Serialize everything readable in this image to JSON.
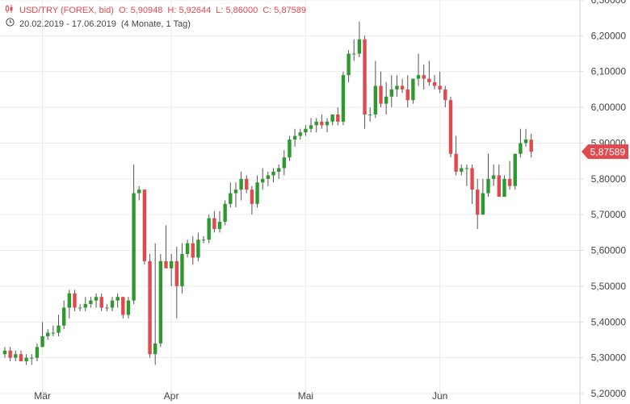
{
  "header": {
    "symbol": "USD/TRY (FOREX, bid)",
    "open": "O: 5,90948",
    "high": "H: 5,92644",
    "low": "L: 5,86000",
    "close": "C: 5,87589",
    "range": "20.02.2019 - 17.06.2019",
    "period": "(4 Monate, 1 Tag)",
    "chart_icon": "candlestick-icon",
    "clock_icon": "clock-icon"
  },
  "colors": {
    "up": "#2e9a2e",
    "down": "#e0494d",
    "grid": "#ececec",
    "axis": "#d4d4d4",
    "text": "#444444",
    "last_tag": "#e0494d"
  },
  "chart_data": {
    "type": "candlestick",
    "title": "USD/TRY (FOREX, bid)",
    "ylim": [
      5.2,
      6.3
    ],
    "y_ticks": [
      "6,30000",
      "6,20000",
      "6,10000",
      "6,00000",
      "5,90000",
      "5,80000",
      "5,70000",
      "5,60000",
      "5,50000",
      "5,40000",
      "5,30000",
      "5,20000"
    ],
    "x_labels": [
      {
        "label": "Mär",
        "index": 7
      },
      {
        "label": "Apr",
        "index": 31
      },
      {
        "label": "Mai",
        "index": 56
      },
      {
        "label": "Jun",
        "index": 81
      }
    ],
    "last_value": "5,87589",
    "last_close": 5.87589,
    "ohlc": [
      [
        5.31,
        5.33,
        5.3,
        5.32
      ],
      [
        5.32,
        5.33,
        5.29,
        5.3
      ],
      [
        5.3,
        5.32,
        5.29,
        5.31
      ],
      [
        5.31,
        5.32,
        5.29,
        5.29
      ],
      [
        5.29,
        5.31,
        5.28,
        5.3
      ],
      [
        5.3,
        5.31,
        5.28,
        5.3
      ],
      [
        5.3,
        5.34,
        5.29,
        5.33
      ],
      [
        5.33,
        5.4,
        5.33,
        5.36
      ],
      [
        5.36,
        5.38,
        5.35,
        5.37
      ],
      [
        5.37,
        5.39,
        5.36,
        5.37
      ],
      [
        5.37,
        5.42,
        5.36,
        5.39
      ],
      [
        5.39,
        5.46,
        5.38,
        5.44
      ],
      [
        5.44,
        5.49,
        5.41,
        5.48
      ],
      [
        5.48,
        5.49,
        5.43,
        5.44
      ],
      [
        5.44,
        5.45,
        5.43,
        5.44
      ],
      [
        5.44,
        5.47,
        5.43,
        5.45
      ],
      [
        5.45,
        5.47,
        5.44,
        5.46
      ],
      [
        5.46,
        5.48,
        5.44,
        5.47
      ],
      [
        5.47,
        5.48,
        5.43,
        5.44
      ],
      [
        5.44,
        5.45,
        5.43,
        5.44
      ],
      [
        5.44,
        5.47,
        5.43,
        5.46
      ],
      [
        5.46,
        5.48,
        5.44,
        5.47
      ],
      [
        5.47,
        5.47,
        5.41,
        5.42
      ],
      [
        5.42,
        5.47,
        5.41,
        5.46
      ],
      [
        5.46,
        5.84,
        5.45,
        5.76
      ],
      [
        5.76,
        5.78,
        5.74,
        5.77
      ],
      [
        5.77,
        5.77,
        5.56,
        5.57
      ],
      [
        5.57,
        5.59,
        5.3,
        5.31
      ],
      [
        5.31,
        5.62,
        5.28,
        5.34
      ],
      [
        5.34,
        5.59,
        5.33,
        5.57
      ],
      [
        5.57,
        5.67,
        5.55,
        5.55
      ],
      [
        5.55,
        5.59,
        5.5,
        5.57
      ],
      [
        5.57,
        5.61,
        5.41,
        5.5
      ],
      [
        5.5,
        5.62,
        5.48,
        5.59
      ],
      [
        5.59,
        5.63,
        5.58,
        5.62
      ],
      [
        5.62,
        5.64,
        5.56,
        5.58
      ],
      [
        5.58,
        5.65,
        5.57,
        5.63
      ],
      [
        5.63,
        5.64,
        5.62,
        5.63
      ],
      [
        5.63,
        5.7,
        5.62,
        5.69
      ],
      [
        5.69,
        5.71,
        5.65,
        5.66
      ],
      [
        5.66,
        5.71,
        5.65,
        5.68
      ],
      [
        5.68,
        5.74,
        5.67,
        5.73
      ],
      [
        5.73,
        5.79,
        5.72,
        5.76
      ],
      [
        5.76,
        5.79,
        5.72,
        5.77
      ],
      [
        5.77,
        5.82,
        5.74,
        5.8
      ],
      [
        5.8,
        5.81,
        5.76,
        5.77
      ],
      [
        5.77,
        5.78,
        5.7,
        5.73
      ],
      [
        5.73,
        5.81,
        5.72,
        5.79
      ],
      [
        5.79,
        5.83,
        5.77,
        5.8
      ],
      [
        5.8,
        5.82,
        5.78,
        5.81
      ],
      [
        5.81,
        5.83,
        5.79,
        5.82
      ],
      [
        5.82,
        5.84,
        5.8,
        5.83
      ],
      [
        5.83,
        5.88,
        5.81,
        5.86
      ],
      [
        5.86,
        5.92,
        5.85,
        5.91
      ],
      [
        5.91,
        5.94,
        5.89,
        5.92
      ],
      [
        5.92,
        5.94,
        5.91,
        5.93
      ],
      [
        5.93,
        5.95,
        5.92,
        5.94
      ],
      [
        5.94,
        5.97,
        5.93,
        5.95
      ],
      [
        5.95,
        5.97,
        5.93,
        5.96
      ],
      [
        5.96,
        5.98,
        5.94,
        5.95
      ],
      [
        5.95,
        5.97,
        5.93,
        5.96
      ],
      [
        5.96,
        5.98,
        5.95,
        5.98
      ],
      [
        5.98,
        6.0,
        5.95,
        5.96
      ],
      [
        5.96,
        6.1,
        5.95,
        6.09
      ],
      [
        6.09,
        6.16,
        6.07,
        6.15
      ],
      [
        6.15,
        6.19,
        6.13,
        6.15
      ],
      [
        6.15,
        6.24,
        6.14,
        6.19
      ],
      [
        6.19,
        6.2,
        5.94,
        5.98
      ],
      [
        5.98,
        6.0,
        5.96,
        5.98
      ],
      [
        5.98,
        6.13,
        5.97,
        6.06
      ],
      [
        6.06,
        6.1,
        6.0,
        6.01
      ],
      [
        6.01,
        6.07,
        5.98,
        6.03
      ],
      [
        6.03,
        6.09,
        6.0,
        6.05
      ],
      [
        6.05,
        6.09,
        6.03,
        6.06
      ],
      [
        6.06,
        6.08,
        6.04,
        6.05
      ],
      [
        6.05,
        6.09,
        6.0,
        6.02
      ],
      [
        6.02,
        6.08,
        6.01,
        6.08
      ],
      [
        6.08,
        6.15,
        6.06,
        6.09
      ],
      [
        6.09,
        6.12,
        6.05,
        6.08
      ],
      [
        6.08,
        6.13,
        6.06,
        6.07
      ],
      [
        6.07,
        6.09,
        6.05,
        6.06
      ],
      [
        6.06,
        6.1,
        6.04,
        6.05
      ],
      [
        6.05,
        6.06,
        6.0,
        6.02
      ],
      [
        6.02,
        6.03,
        5.86,
        5.87
      ],
      [
        5.87,
        5.92,
        5.81,
        5.82
      ],
      [
        5.82,
        5.84,
        5.81,
        5.83
      ],
      [
        5.83,
        5.84,
        5.78,
        5.83
      ],
      [
        5.83,
        5.84,
        5.73,
        5.77
      ],
      [
        5.77,
        5.8,
        5.66,
        5.7
      ],
      [
        5.7,
        5.8,
        5.7,
        5.76
      ],
      [
        5.76,
        5.87,
        5.75,
        5.8
      ],
      [
        5.8,
        5.84,
        5.78,
        5.81
      ],
      [
        5.81,
        5.84,
        5.76,
        5.75
      ],
      [
        5.75,
        5.81,
        5.75,
        5.8
      ],
      [
        5.8,
        5.85,
        5.77,
        5.78
      ],
      [
        5.78,
        5.87,
        5.77,
        5.87
      ],
      [
        5.87,
        5.94,
        5.86,
        5.9
      ],
      [
        5.9,
        5.94,
        5.89,
        5.91
      ],
      [
        5.90948,
        5.92644,
        5.86,
        5.87589
      ]
    ]
  }
}
